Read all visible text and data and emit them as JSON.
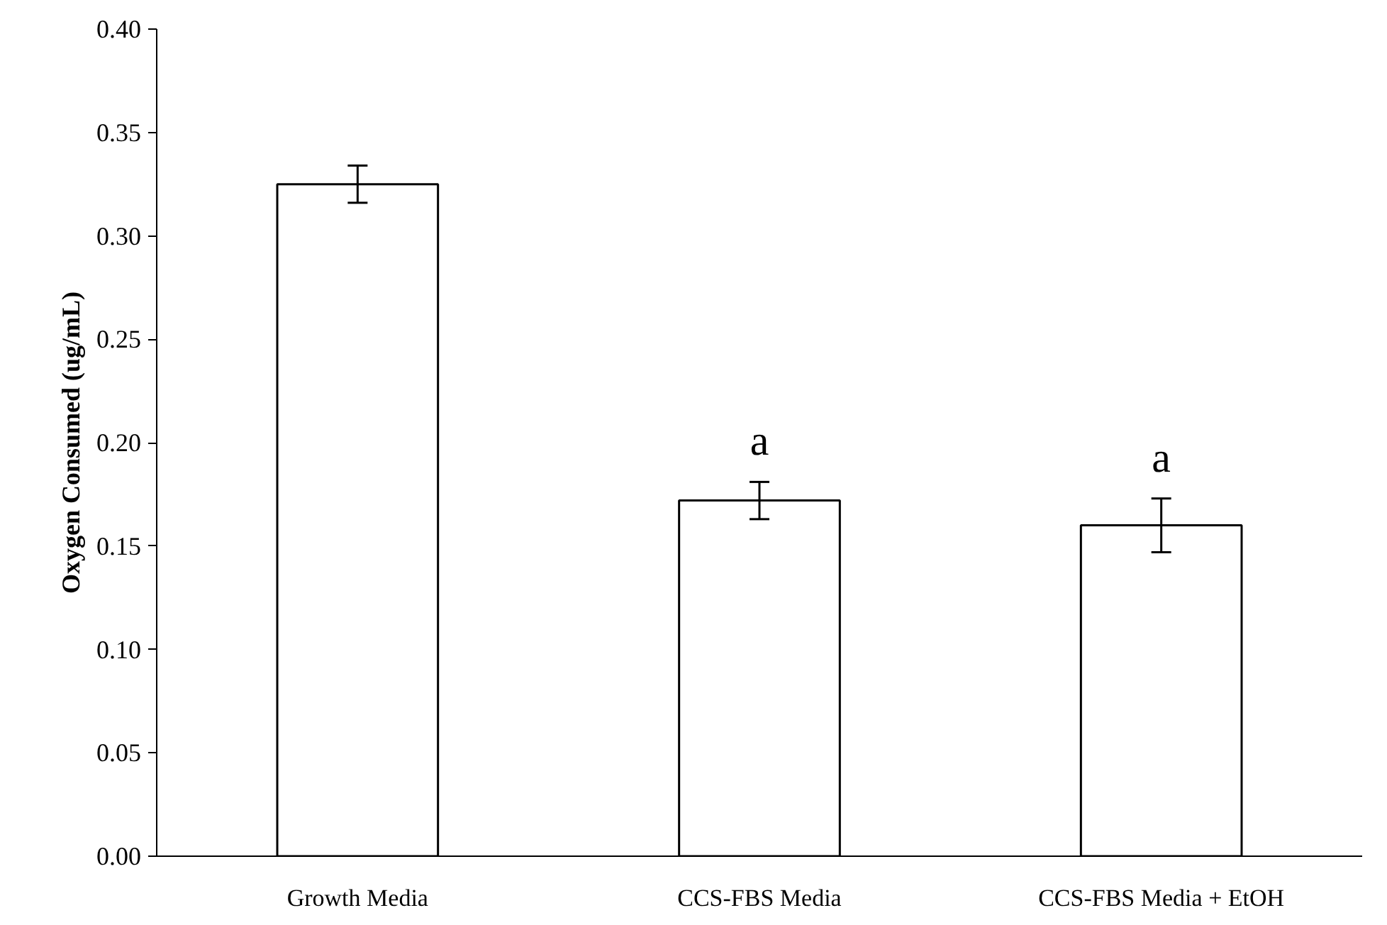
{
  "chart_data": {
    "type": "bar",
    "ylabel": "Oxygen Consumed (ug/mL)",
    "categories": [
      "Growth Media",
      "CCS-FBS Media",
      "CCS-FBS Media + EtOH"
    ],
    "values": [
      0.325,
      0.172,
      0.16
    ],
    "errors": [
      0.009,
      0.009,
      0.013
    ],
    "color": "#ffffff",
    "ylim": [
      0,
      0.4
    ],
    "yticks": [
      {
        "value": 0,
        "label": "0.00"
      },
      {
        "value": 0.05,
        "label": "0.05"
      },
      {
        "value": 0.1,
        "label": "0.10"
      },
      {
        "value": 0.15,
        "label": "0.15"
      },
      {
        "value": 0.2,
        "label": "0.20"
      },
      {
        "value": 0.25,
        "label": "0.25"
      },
      {
        "value": 0.3,
        "label": "0.30"
      },
      {
        "value": 0.35,
        "label": "0.35"
      },
      {
        "value": 0.4,
        "label": "0.40"
      }
    ],
    "annotations": [
      "a",
      "a"
    ],
    "grid": false
  }
}
